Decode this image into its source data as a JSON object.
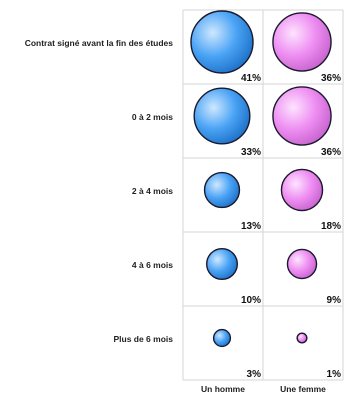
{
  "chart_data": {
    "type": "bubble-matrix",
    "rows": [
      "Contrat signé avant la fin des études",
      "0 à 2 mois",
      "2 à 4 mois",
      "4 à 6 mois",
      "Plus de 6 mois"
    ],
    "columns": [
      "Un homme",
      "Une femme"
    ],
    "series": [
      {
        "name": "Un homme",
        "values": [
          41,
          33,
          13,
          10,
          3
        ],
        "labels": [
          "41%",
          "33%",
          "13%",
          "10%",
          "3%"
        ]
      },
      {
        "name": "Une femme",
        "values": [
          36,
          36,
          18,
          9,
          1
        ],
        "labels": [
          "36%",
          "36%",
          "18%",
          "9%",
          "1%"
        ]
      }
    ],
    "unit": "%",
    "grid": true
  },
  "colors": {
    "Un homme": "#4aa3f5",
    "Une femme": "#ee8ef2",
    "grid": "#d6d6d6",
    "bubble_stroke": "#1a1a2e"
  }
}
